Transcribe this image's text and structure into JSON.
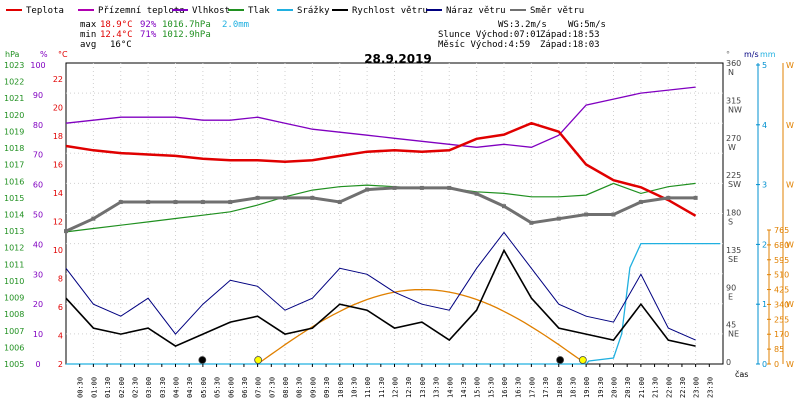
{
  "legend": [
    {
      "label": "Teplota",
      "color": "#e00000"
    },
    {
      "label": "Přízemní teplota",
      "color": "#b000b0"
    },
    {
      "label": "Vlhkost",
      "color": "#8000c0"
    },
    {
      "label": "Tlak",
      "color": "#209020"
    },
    {
      "label": "Srážky",
      "color": "#20b0e0"
    },
    {
      "label": "Rychlost větru",
      "color": "#000000"
    },
    {
      "label": "Náraz větru",
      "color": "#000080"
    },
    {
      "label": "Směr větru",
      "color": "#707070"
    }
  ],
  "stats": {
    "max_label": "max",
    "max_temp": "18.9°C",
    "max_hum": "92%",
    "max_press": "1016.7hPa",
    "max_rain": "2.0mm",
    "min_label": "min",
    "min_temp": "12.4°C",
    "min_hum": "71%",
    "min_press": "1012.9hPa",
    "avg_label": "avg",
    "avg_temp": "16°C",
    "ws": "WS:3.2m/s",
    "wg": "WG:5m/s",
    "sun_rise": "Slunce Východ:07:01",
    "sun_set": "Západ:18:53",
    "moon_rise": "Měsíc  Východ:4:59",
    "moon_set": "Západ:18:03"
  },
  "date": "28.9.2019",
  "axes": {
    "hpa_title": "hPa",
    "pct_title": "%",
    "c_title": "°C",
    "deg_title": "°",
    "mm_title": "mm",
    "ms_title": "m/s",
    "time_unit": "čas",
    "hpa_ticks": [
      "1023",
      "1022",
      "1021",
      "1020",
      "1019",
      "1018",
      "1017",
      "1016",
      "1015",
      "1014",
      "1013",
      "1012",
      "1011",
      "1010",
      "1009",
      "1008",
      "1007",
      "1006",
      "1005"
    ],
    "pct_ticks": [
      "100",
      "90",
      "80",
      "70",
      "60",
      "50",
      "40",
      "30",
      "20",
      "10",
      "0"
    ],
    "c_ticks": [
      "22",
      "20",
      "18",
      "16",
      "14",
      "12",
      "10",
      "8",
      "6",
      "4",
      "2"
    ],
    "dir_ticks": [
      {
        "deg": "360",
        "dir": "N"
      },
      {
        "deg": "315",
        "dir": "NW"
      },
      {
        "deg": "270",
        "dir": "W"
      },
      {
        "deg": "225",
        "dir": "SW"
      },
      {
        "deg": "180",
        "dir": "S"
      },
      {
        "deg": "135",
        "dir": "SE"
      },
      {
        "deg": "90",
        "dir": "E"
      },
      {
        "deg": "45",
        "dir": "NE"
      },
      {
        "deg": "0",
        "dir": ""
      }
    ],
    "ms_ticks": [
      "5",
      "4",
      "3",
      "2",
      "1",
      "0"
    ],
    "mm_ticks": [
      "765",
      "680",
      "595",
      "510",
      "425",
      "340",
      "255",
      "170",
      "85",
      "0"
    ],
    "w_ticks": [
      "W",
      "W",
      "W",
      "W",
      "W",
      "W"
    ],
    "time_ticks": [
      "00:30",
      "01:00",
      "01:30",
      "02:00",
      "02:30",
      "03:00",
      "03:30",
      "04:00",
      "04:30",
      "05:00",
      "05:30",
      "06:00",
      "06:30",
      "07:00",
      "07:30",
      "08:00",
      "08:30",
      "09:00",
      "09:30",
      "10:00",
      "10:30",
      "11:00",
      "11:30",
      "12:00",
      "12:30",
      "13:00",
      "13:30",
      "14:00",
      "14:30",
      "15:00",
      "15:30",
      "16:00",
      "16:30",
      "17:00",
      "17:30",
      "18:00",
      "18:30",
      "19:00",
      "19:30",
      "20:00",
      "20:30",
      "21:00",
      "21:30",
      "22:00",
      "22:30",
      "23:00",
      "23:30"
    ]
  },
  "chart_data": {
    "type": "line",
    "title": "28.9.2019",
    "x_unit": "hours",
    "temperature_c": [
      [
        0,
        17.3
      ],
      [
        1,
        17.0
      ],
      [
        2,
        16.8
      ],
      [
        3,
        16.7
      ],
      [
        4,
        16.6
      ],
      [
        5,
        16.4
      ],
      [
        6,
        16.3
      ],
      [
        7,
        16.3
      ],
      [
        8,
        16.2
      ],
      [
        9,
        16.3
      ],
      [
        10,
        16.6
      ],
      [
        11,
        16.9
      ],
      [
        12,
        17.0
      ],
      [
        13,
        16.9
      ],
      [
        14,
        17.0
      ],
      [
        15,
        17.8
      ],
      [
        16,
        18.1
      ],
      [
        17,
        18.9
      ],
      [
        18,
        18.3
      ],
      [
        19,
        16.0
      ],
      [
        20,
        14.9
      ],
      [
        21,
        14.4
      ],
      [
        22,
        13.5
      ],
      [
        23,
        12.4
      ]
    ],
    "humidity_pct": [
      [
        0,
        80
      ],
      [
        1,
        81
      ],
      [
        2,
        82
      ],
      [
        3,
        82
      ],
      [
        4,
        82
      ],
      [
        5,
        81
      ],
      [
        6,
        81
      ],
      [
        7,
        82
      ],
      [
        8,
        80
      ],
      [
        9,
        78
      ],
      [
        10,
        77
      ],
      [
        11,
        76
      ],
      [
        12,
        75
      ],
      [
        13,
        74
      ],
      [
        14,
        73
      ],
      [
        15,
        72
      ],
      [
        16,
        73
      ],
      [
        17,
        72
      ],
      [
        18,
        76
      ],
      [
        19,
        86
      ],
      [
        20,
        88
      ],
      [
        21,
        90
      ],
      [
        22,
        91
      ],
      [
        23,
        92
      ]
    ],
    "pressure_hpa": [
      [
        0,
        1012.9
      ],
      [
        1,
        1013.1
      ],
      [
        2,
        1013.3
      ],
      [
        3,
        1013.5
      ],
      [
        4,
        1013.7
      ],
      [
        5,
        1013.9
      ],
      [
        6,
        1014.1
      ],
      [
        7,
        1014.5
      ],
      [
        8,
        1015.0
      ],
      [
        9,
        1015.4
      ],
      [
        10,
        1015.6
      ],
      [
        11,
        1015.7
      ],
      [
        12,
        1015.6
      ],
      [
        13,
        1015.5
      ],
      [
        14,
        1015.5
      ],
      [
        15,
        1015.3
      ],
      [
        16,
        1015.2
      ],
      [
        17,
        1015.0
      ],
      [
        18,
        1015.0
      ],
      [
        19,
        1015.1
      ],
      [
        20,
        1015.8
      ],
      [
        21,
        1015.2
      ],
      [
        22,
        1015.6
      ],
      [
        23,
        1015.8
      ]
    ],
    "wind_speed_ms": [
      [
        0,
        1.1
      ],
      [
        1,
        0.6
      ],
      [
        2,
        0.5
      ],
      [
        3,
        0.6
      ],
      [
        4,
        0.3
      ],
      [
        5,
        0.5
      ],
      [
        6,
        0.7
      ],
      [
        7,
        0.8
      ],
      [
        8,
        0.5
      ],
      [
        9,
        0.6
      ],
      [
        10,
        1.0
      ],
      [
        11,
        0.9
      ],
      [
        12,
        0.6
      ],
      [
        13,
        0.7
      ],
      [
        14,
        0.4
      ],
      [
        15,
        0.9
      ],
      [
        16,
        1.9
      ],
      [
        17,
        1.1
      ],
      [
        18,
        0.6
      ],
      [
        19,
        0.5
      ],
      [
        20,
        0.4
      ],
      [
        21,
        1.0
      ],
      [
        22,
        0.4
      ],
      [
        23,
        0.3
      ]
    ],
    "wind_gust_ms": [
      [
        0,
        1.6
      ],
      [
        1,
        1.0
      ],
      [
        2,
        0.8
      ],
      [
        3,
        1.1
      ],
      [
        4,
        0.5
      ],
      [
        5,
        1.0
      ],
      [
        6,
        1.4
      ],
      [
        7,
        1.3
      ],
      [
        8,
        0.9
      ],
      [
        9,
        1.1
      ],
      [
        10,
        1.6
      ],
      [
        11,
        1.5
      ],
      [
        12,
        1.2
      ],
      [
        13,
        1.0
      ],
      [
        14,
        0.9
      ],
      [
        15,
        1.6
      ],
      [
        16,
        2.2
      ],
      [
        17,
        1.6
      ],
      [
        18,
        1.0
      ],
      [
        19,
        0.8
      ],
      [
        20,
        0.7
      ],
      [
        21,
        1.5
      ],
      [
        22,
        0.6
      ],
      [
        23,
        0.4
      ]
    ],
    "wind_dir_deg": [
      [
        0,
        160
      ],
      [
        1,
        175
      ],
      [
        2,
        195
      ],
      [
        3,
        195
      ],
      [
        4,
        195
      ],
      [
        5,
        195
      ],
      [
        6,
        195
      ],
      [
        7,
        200
      ],
      [
        8,
        200
      ],
      [
        9,
        200
      ],
      [
        10,
        195
      ],
      [
        11,
        210
      ],
      [
        12,
        212
      ],
      [
        13,
        212
      ],
      [
        14,
        212
      ],
      [
        15,
        205
      ],
      [
        16,
        190
      ],
      [
        17,
        170
      ],
      [
        18,
        175
      ],
      [
        19,
        180
      ],
      [
        20,
        180
      ],
      [
        21,
        195
      ],
      [
        22,
        200
      ],
      [
        23,
        200
      ]
    ],
    "precipitation_mm": [
      [
        0,
        0
      ],
      [
        19,
        0
      ],
      [
        19.1,
        0.05
      ],
      [
        20,
        0.1
      ],
      [
        20.3,
        0.5
      ],
      [
        20.6,
        1.6
      ],
      [
        21,
        2.0
      ],
      [
        23.9,
        2.0
      ]
    ],
    "solar": [
      [
        0,
        0
      ],
      [
        7,
        0
      ],
      [
        14,
        425
      ],
      [
        19,
        0
      ],
      [
        23.9,
        0
      ]
    ],
    "ylim_temp": [
      2,
      24
    ],
    "ylim_humidity": [
      0,
      100
    ],
    "ylim_pressure": [
      1005,
      1023
    ],
    "ylim_wind": [
      0,
      5
    ]
  }
}
